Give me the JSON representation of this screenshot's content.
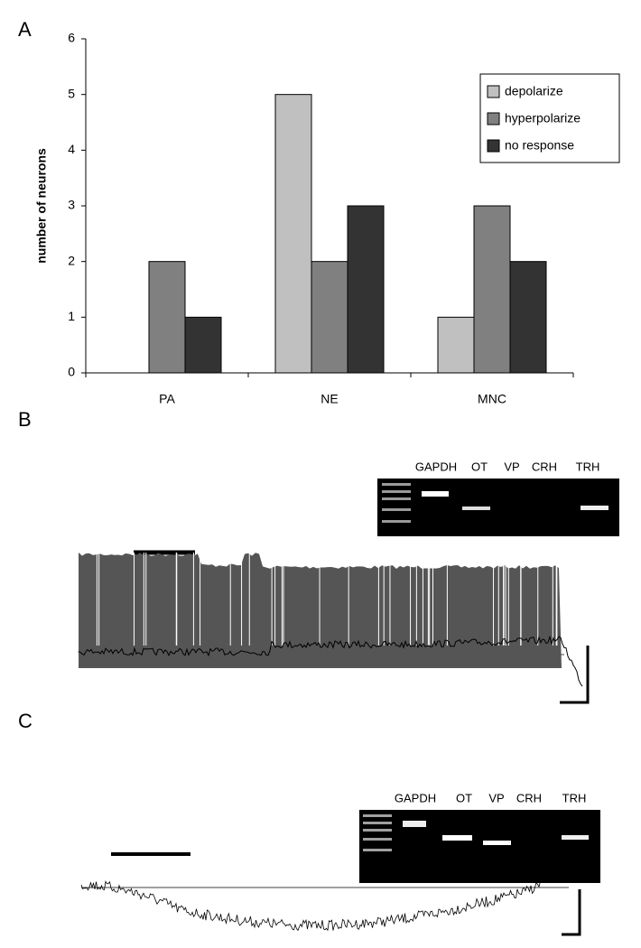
{
  "chart_data": {
    "type": "bar",
    "y_label": "number of neurons",
    "categories": [
      "PA",
      "NE",
      "MNC"
    ],
    "series": [
      {
        "name": "depolarize",
        "color": "#c0c0c0",
        "values": [
          0,
          5,
          1
        ]
      },
      {
        "name": "hyperpolarize",
        "color": "#808080",
        "values": [
          2,
          2,
          3
        ]
      },
      {
        "name": "no response",
        "color": "#333333",
        "values": [
          1,
          3,
          2
        ]
      }
    ],
    "ylim": [
      0,
      6
    ],
    "yticks": [
      0,
      1,
      2,
      3,
      4,
      5,
      6
    ],
    "legend": "top-right"
  },
  "panels": [
    "A",
    "B",
    "C"
  ],
  "gels": [
    {
      "lanes": [
        "GAPDH",
        "OT",
        "VP",
        "CRH",
        "TRH"
      ]
    },
    {
      "lanes": [
        "GAPDH",
        "OT",
        "VP",
        "CRH",
        "TRH"
      ]
    }
  ]
}
